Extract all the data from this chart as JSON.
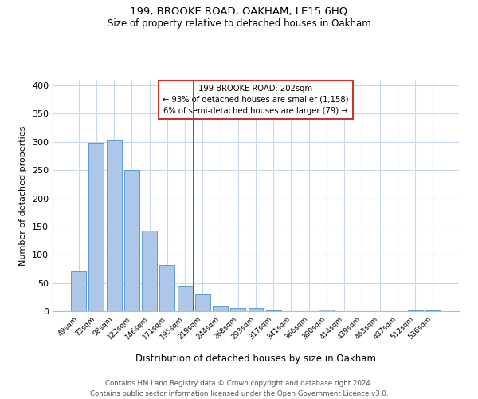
{
  "title": "199, BROOKE ROAD, OAKHAM, LE15 6HQ",
  "subtitle": "Size of property relative to detached houses in Oakham",
  "xlabel": "Distribution of detached houses by size in Oakham",
  "ylabel": "Number of detached properties",
  "categories": [
    "49sqm",
    "73sqm",
    "98sqm",
    "122sqm",
    "146sqm",
    "171sqm",
    "195sqm",
    "219sqm",
    "244sqm",
    "268sqm",
    "293sqm",
    "317sqm",
    "341sqm",
    "366sqm",
    "390sqm",
    "414sqm",
    "439sqm",
    "463sqm",
    "487sqm",
    "512sqm",
    "536sqm"
  ],
  "values": [
    70,
    298,
    303,
    250,
    143,
    82,
    44,
    30,
    9,
    5,
    6,
    2,
    0,
    0,
    3,
    0,
    0,
    0,
    0,
    2,
    2
  ],
  "bar_color": "#aec6e8",
  "bar_edge_color": "#5b9bd5",
  "vline_x": 6.5,
  "vline_color": "#c0392b",
  "annotation_title": "199 BROOKE ROAD: 202sqm",
  "annotation_line1": "← 93% of detached houses are smaller (1,158)",
  "annotation_line2": "6% of semi-detached houses are larger (79) →",
  "annotation_box_color": "#c0392b",
  "ylim": [
    0,
    410
  ],
  "yticks": [
    0,
    50,
    100,
    150,
    200,
    250,
    300,
    350,
    400
  ],
  "footer1": "Contains HM Land Registry data © Crown copyright and database right 2024.",
  "footer2": "Contains public sector information licensed under the Open Government Licence v3.0.",
  "bg_color": "#ffffff",
  "grid_color": "#c8d8e8"
}
